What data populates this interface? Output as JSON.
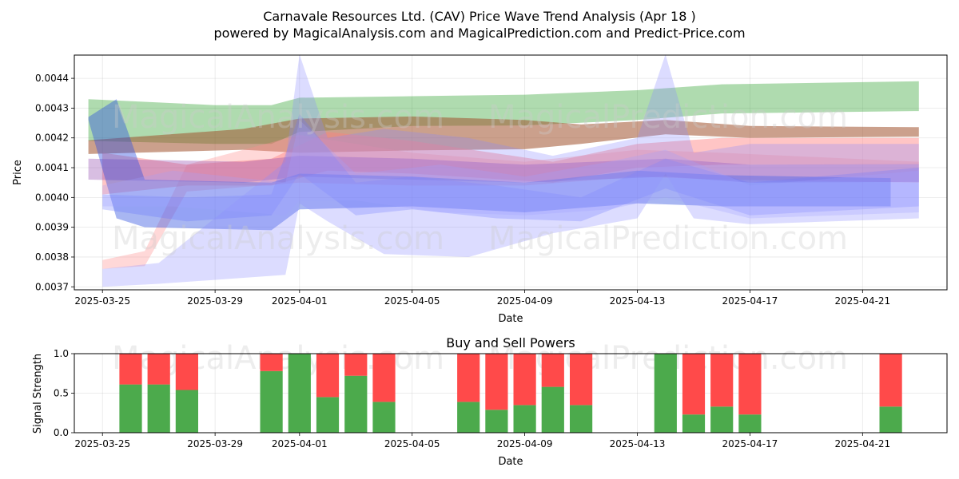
{
  "chart_data": [
    {
      "type": "area",
      "title": "Carnavale Resources Ltd. (CAV) Price Wave Trend Analysis (Apr 18 )",
      "subtitle": "powered by MagicalAnalysis.com and MagicalPrediction.com and Predict-Price.com",
      "xlabel": "Date",
      "ylabel": "Price",
      "x_range": [
        "2025-03-24",
        "2025-04-24"
      ],
      "ylim": [
        0.00369,
        0.004478
      ],
      "x_ticks": [
        "2025-03-25",
        "2025-03-29",
        "2025-04-01",
        "2025-04-05",
        "2025-04-09",
        "2025-04-13",
        "2025-04-17",
        "2025-04-21"
      ],
      "y_ticks": [
        0.0037,
        0.0038,
        0.0039,
        0.004,
        0.0041,
        0.0042,
        0.0043,
        0.0044
      ],
      "y_tick_labels": [
        "0.0037",
        "0.0038",
        "0.0039",
        "0.0040",
        "0.0041",
        "0.0042",
        "0.0043",
        "0.0044"
      ],
      "grid": true,
      "bands": [
        {
          "name": "green",
          "color": "#2ca02c",
          "opacity": 0.38,
          "x": [
            "2025-03-24T12:00",
            "2025-03-29",
            "2025-03-31",
            "2025-04-01",
            "2025-04-05",
            "2025-04-09",
            "2025-04-13",
            "2025-04-16",
            "2025-04-23"
          ],
          "upper": [
            0.00433,
            0.00431,
            0.00431,
            0.004335,
            0.00434,
            0.004345,
            0.00436,
            0.00438,
            0.00439
          ],
          "lower": [
            0.00419,
            0.00418,
            0.00418,
            0.00422,
            0.00424,
            0.004242,
            0.00426,
            0.004282,
            0.00429
          ]
        },
        {
          "name": "brown",
          "color": "#a0522d",
          "opacity": 0.55,
          "x": [
            "2025-03-24T12:00",
            "2025-03-30",
            "2025-04-01",
            "2025-04-05",
            "2025-04-09",
            "2025-04-11",
            "2025-04-14",
            "2025-04-17",
            "2025-04-23"
          ],
          "upper": [
            0.004192,
            0.00423,
            0.004265,
            0.004272,
            0.00426,
            0.004245,
            0.00426,
            0.00424,
            0.004236
          ],
          "lower": [
            0.004146,
            0.00416,
            0.00415,
            0.004158,
            0.004162,
            0.00418,
            0.004212,
            0.0042,
            0.004204
          ]
        },
        {
          "name": "salmon-upper",
          "color": "#ff7f7f",
          "opacity": 0.45,
          "x": [
            "2025-03-25",
            "2025-03-28",
            "2025-03-31",
            "2025-04-02",
            "2025-04-05",
            "2025-04-10",
            "2025-04-13",
            "2025-04-16",
            "2025-04-23"
          ],
          "upper": [
            0.00415,
            0.00411,
            0.00413,
            0.00422,
            0.00419,
            0.00412,
            0.00418,
            0.0042,
            0.0042
          ],
          "lower": [
            0.00401,
            0.00404,
            0.00404,
            0.00409,
            0.00408,
            0.00405,
            0.0041,
            0.00411,
            0.004111
          ]
        },
        {
          "name": "salmon-lower",
          "color": "#ff9090",
          "opacity": 0.35,
          "x": [
            "2025-03-25",
            "2025-03-26T12:00",
            "2025-03-28",
            "2025-04-01",
            "2025-04-05",
            "2025-04-09",
            "2025-04-13",
            "2025-04-16",
            "2025-04-23"
          ],
          "upper": [
            0.00379,
            0.00382,
            0.00411,
            0.00421,
            0.00415,
            0.00412,
            0.00416,
            0.00415,
            0.00412
          ],
          "lower": [
            0.00376,
            0.00377,
            0.00402,
            0.00405,
            0.00404,
            0.00404,
            0.00407,
            0.00406,
            0.00405
          ]
        },
        {
          "name": "purple",
          "color": "#8e44ad",
          "opacity": 0.35,
          "x": [
            "2025-03-24T12:00",
            "2025-03-30",
            "2025-04-01",
            "2025-04-05",
            "2025-04-09",
            "2025-04-14",
            "2025-04-17",
            "2025-04-23"
          ],
          "upper": [
            0.00413,
            0.00412,
            0.00414,
            0.00413,
            0.00411,
            0.00413,
            0.00411,
            0.004112
          ],
          "lower": [
            0.00406,
            0.00405,
            0.00407,
            0.00406,
            0.00405,
            0.00407,
            0.00405,
            0.004052
          ]
        },
        {
          "name": "blue-dark",
          "color": "#3050e0",
          "opacity": 0.42,
          "x": [
            "2025-03-24T12:00",
            "2025-03-25T12:00",
            "2025-03-26T12:00",
            "2025-03-31",
            "2025-04-01",
            "2025-04-05",
            "2025-04-09",
            "2025-04-13",
            "2025-04-16",
            "2025-04-22"
          ],
          "upper": [
            0.00427,
            0.00433,
            0.00406,
            0.00405,
            0.00408,
            0.00407,
            0.00405,
            0.00409,
            0.004075,
            0.004065
          ],
          "lower": [
            0.00426,
            0.00393,
            0.0039,
            0.00389,
            0.00396,
            0.00397,
            0.00395,
            0.00398,
            0.00397,
            0.00397
          ]
        },
        {
          "name": "blue-mid",
          "color": "#6070ff",
          "opacity": 0.28,
          "x": [
            "2025-03-25",
            "2025-03-28",
            "2025-03-31",
            "2025-04-01",
            "2025-04-03",
            "2025-04-05",
            "2025-04-08",
            "2025-04-11",
            "2025-04-14",
            "2025-04-17",
            "2025-04-23"
          ],
          "upper": [
            0.00401,
            0.004,
            0.00401,
            0.00428,
            0.00405,
            0.00407,
            0.00404,
            0.004,
            0.00413,
            0.00405,
            0.0041
          ],
          "lower": [
            0.00396,
            0.00392,
            0.00394,
            0.00408,
            0.00394,
            0.00396,
            0.00393,
            0.00392,
            0.00403,
            0.00394,
            0.00397
          ]
        },
        {
          "name": "blue-light-1",
          "color": "#8c8cff",
          "opacity": 0.3,
          "x": [
            "2025-03-25",
            "2025-03-27",
            "2025-03-31T12:00",
            "2025-04-01",
            "2025-04-02",
            "2025-04-04",
            "2025-04-07",
            "2025-04-10",
            "2025-04-13",
            "2025-04-14",
            "2025-04-15",
            "2025-04-17",
            "2025-04-23"
          ],
          "upper": [
            0.00376,
            0.00378,
            0.00412,
            0.00448,
            0.0042,
            0.00423,
            0.0042,
            0.00414,
            0.0042,
            0.00448,
            0.00415,
            0.00418,
            0.00418
          ],
          "lower": [
            0.0037,
            0.00371,
            0.00374,
            0.00398,
            0.00392,
            0.00381,
            0.0038,
            0.00388,
            0.00393,
            0.00408,
            0.00393,
            0.00391,
            0.00393
          ]
        },
        {
          "name": "blue-light-2",
          "color": "#a0a0ff",
          "opacity": 0.28,
          "x": [
            "2025-03-25",
            "2025-03-27T12:00",
            "2025-03-31T12:00",
            "2025-04-01",
            "2025-04-03",
            "2025-04-06",
            "2025-04-09",
            "2025-04-12",
            "2025-04-14",
            "2025-04-17",
            "2025-04-23"
          ],
          "upper": [
            0.00404,
            0.00409,
            0.00405,
            0.00426,
            0.00408,
            0.00411,
            0.00407,
            0.00412,
            0.00416,
            0.00404,
            0.00409
          ],
          "lower": [
            0.00397,
            0.00397,
            0.00394,
            0.00399,
            0.00399,
            0.00395,
            0.00394,
            0.00396,
            0.004,
            0.00393,
            0.00395
          ]
        }
      ]
    },
    {
      "type": "bar",
      "title": "Buy and Sell Powers",
      "xlabel": "Date",
      "ylabel": "Signal Strength",
      "x_range": [
        "2025-03-24",
        "2025-04-24"
      ],
      "ylim": [
        0,
        1
      ],
      "x_ticks": [
        "2025-03-25",
        "2025-03-29",
        "2025-04-01",
        "2025-04-05",
        "2025-04-09",
        "2025-04-13",
        "2025-04-17",
        "2025-04-21"
      ],
      "y_ticks": [
        0,
        0.5,
        1
      ],
      "y_tick_labels": [
        "0.0",
        "0.5",
        "1.0"
      ],
      "grid": true,
      "colors": {
        "buy": "#4caa4c",
        "sell": "#ff4a4a"
      },
      "dates": [
        "2025-03-26",
        "2025-03-27",
        "2025-03-28",
        "2025-03-31",
        "2025-04-01",
        "2025-04-02",
        "2025-04-03",
        "2025-04-04",
        "2025-04-07",
        "2025-04-08",
        "2025-04-09",
        "2025-04-10",
        "2025-04-11",
        "2025-04-14",
        "2025-04-15",
        "2025-04-16",
        "2025-04-17",
        "2025-04-22"
      ],
      "buy": [
        0.61,
        0.61,
        0.54,
        0.78,
        1.0,
        0.45,
        0.72,
        0.39,
        0.39,
        0.29,
        0.35,
        0.58,
        0.35,
        1.0,
        0.23,
        0.33,
        0.23,
        0.33
      ]
    }
  ],
  "watermarks": [
    "MagicalAnalysis.com",
    "MagicalPrediction.com"
  ]
}
